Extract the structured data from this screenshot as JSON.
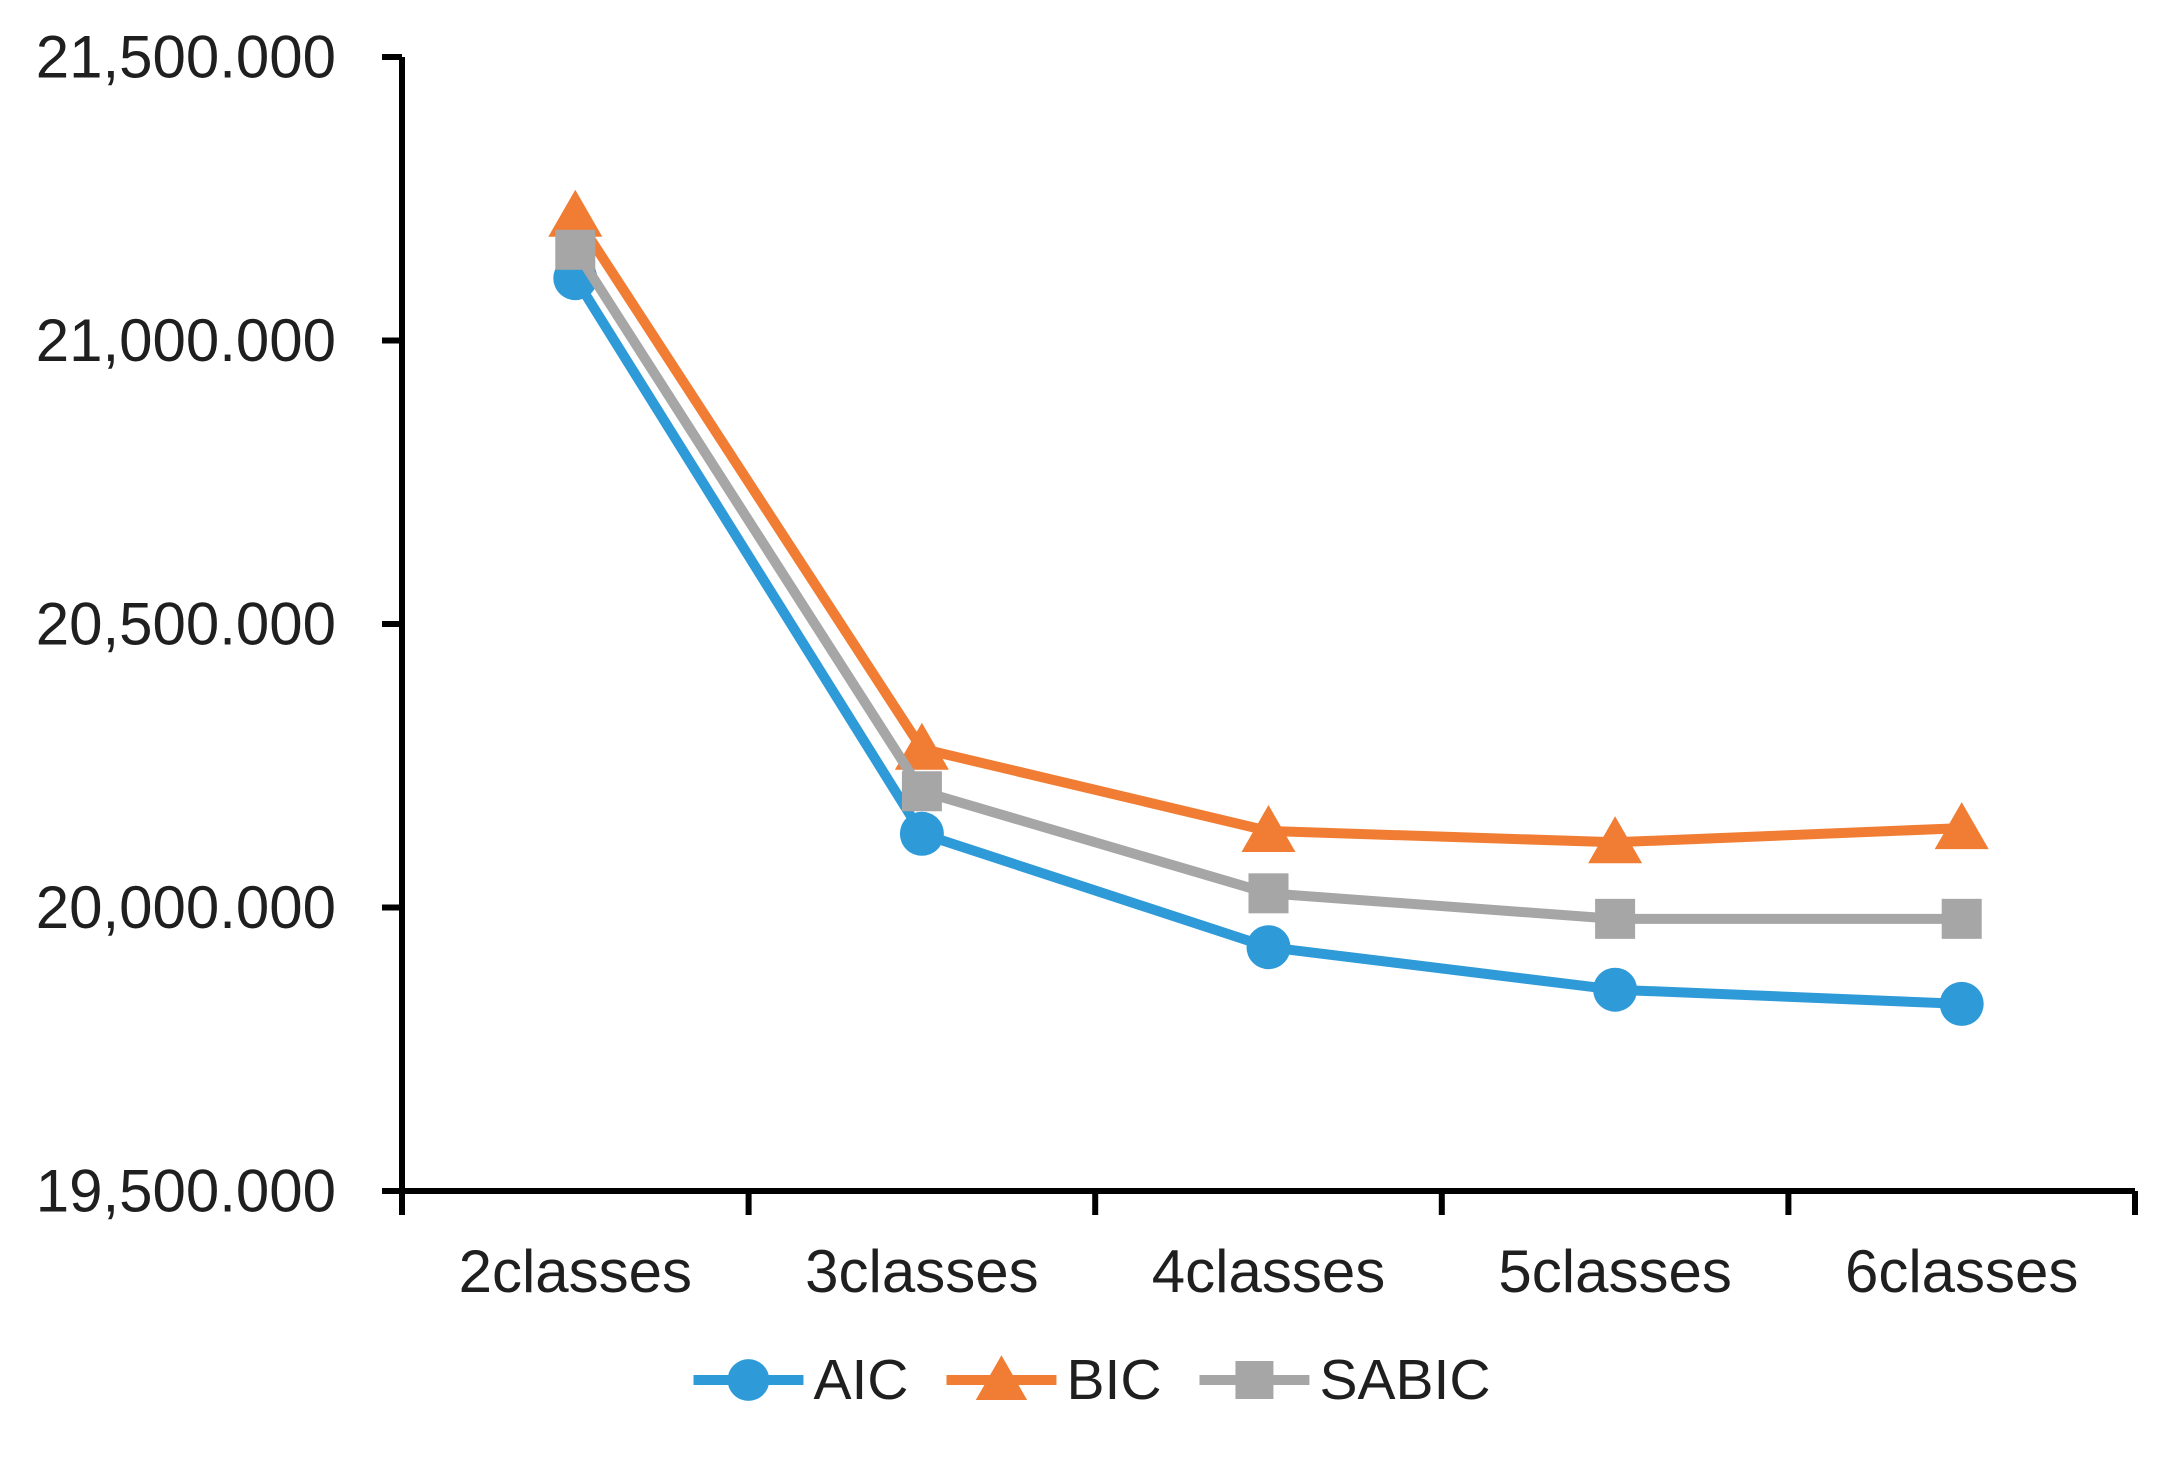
{
  "chart_data": {
    "type": "line",
    "categories": [
      "2classes",
      "3classes",
      "4classes",
      "5classes",
      "6classes"
    ],
    "series": [
      {
        "name": "AIC",
        "marker": "circle",
        "color": "#2E9AD8",
        "values": [
          21110,
          20130,
          19930,
          19855,
          19830
        ]
      },
      {
        "name": "BIC",
        "marker": "triangle",
        "color": "#F07D33",
        "values": [
          21220,
          20280,
          20135,
          20115,
          20140
        ]
      },
      {
        "name": "SABIC",
        "marker": "square",
        "color": "#A6A6A6",
        "values": [
          21160,
          20205,
          20025,
          19980,
          19980
        ]
      }
    ],
    "y_ticks": [
      19500,
      20000,
      20500,
      21000,
      21500
    ],
    "y_tick_labels": [
      "19,500.000",
      "20,000.000",
      "20,500.000",
      "21,000.000",
      "21,500.000"
    ],
    "ylim": [
      19500,
      21500
    ],
    "title": "",
    "xlabel": "",
    "ylabel": "",
    "grid": false,
    "legend_position": "bottom",
    "axis_color": "#000000",
    "text_color": "#1f1f1f",
    "background_color": "#ffffff"
  }
}
